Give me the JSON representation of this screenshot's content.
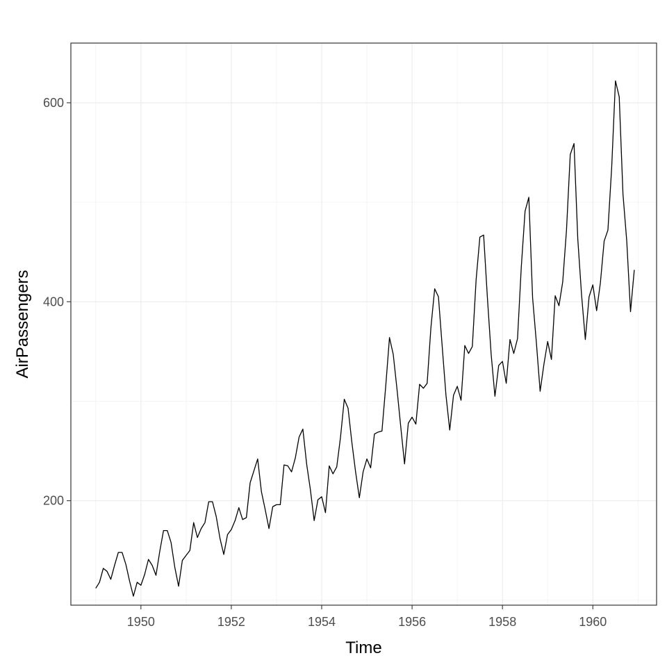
{
  "chart_data": {
    "type": "line",
    "title": "",
    "xlabel": "Time",
    "ylabel": "AirPassengers",
    "xlim": [
      1948.45,
      1961.41
    ],
    "ylim": [
      95,
      660
    ],
    "x_ticks": [
      1950,
      1952,
      1954,
      1956,
      1958,
      1960
    ],
    "x_tick_labels": [
      "1950",
      "1952",
      "1954",
      "1956",
      "1958",
      "1960"
    ],
    "y_ticks": [
      200,
      400,
      600
    ],
    "y_tick_labels": [
      "200",
      "400",
      "600"
    ],
    "x_minor_ticks": [
      1949,
      1951,
      1953,
      1955,
      1957,
      1959,
      1961
    ],
    "y_minor_ticks": [
      100,
      300,
      500
    ],
    "grid": true,
    "theme": "bw",
    "line_color": "#000000",
    "series": [
      {
        "x_start": 1949,
        "x_step": 0.0833333,
        "values": [
          112,
          118,
          132,
          129,
          121,
          135,
          148,
          148,
          136,
          119,
          104,
          118,
          115,
          126,
          141,
          135,
          125,
          149,
          170,
          170,
          158,
          133,
          114,
          140,
          145,
          150,
          178,
          163,
          172,
          178,
          199,
          199,
          184,
          162,
          146,
          166,
          171,
          180,
          193,
          181,
          183,
          218,
          230,
          242,
          209,
          191,
          172,
          194,
          196,
          196,
          236,
          235,
          229,
          243,
          264,
          272,
          237,
          211,
          180,
          201,
          204,
          188,
          235,
          227,
          234,
          264,
          302,
          293,
          259,
          229,
          203,
          229,
          242,
          233,
          267,
          269,
          270,
          315,
          364,
          347,
          312,
          274,
          237,
          278,
          284,
          277,
          317,
          313,
          318,
          374,
          413,
          405,
          355,
          306,
          271,
          306,
          315,
          301,
          356,
          348,
          355,
          422,
          465,
          467,
          404,
          347,
          305,
          336,
          340,
          318,
          362,
          348,
          363,
          435,
          491,
          505,
          404,
          359,
          310,
          337,
          360,
          342,
          406,
          396,
          420,
          472,
          548,
          559,
          463,
          407,
          362,
          405,
          417,
          391,
          419,
          461,
          472,
          535,
          622,
          606,
          508,
          461,
          390,
          432
        ]
      }
    ]
  }
}
